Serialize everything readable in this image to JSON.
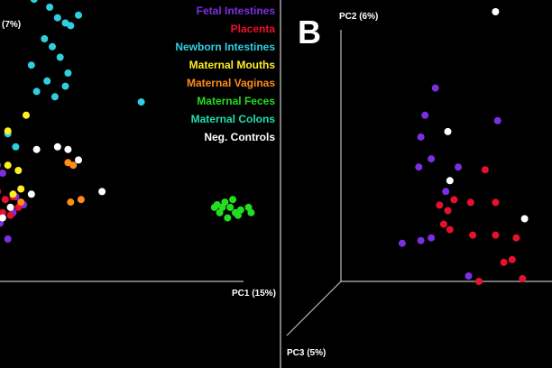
{
  "chart_data": [
    {
      "type": "scatter",
      "panel": "",
      "axes": [
        "PC1 (15%)",
        "",
        "(7%)"
      ],
      "series": [
        {
          "name": "Fetal Intestines",
          "color": "#7b2fe0",
          "points": [
            [
              -0.01,
              0.4
            ],
            [
              0.01,
              0.37
            ],
            [
              0.06,
              0.28
            ],
            [
              0.09,
              0.25
            ],
            [
              0.05,
              0.22
            ],
            [
              0.0,
              0.18
            ],
            [
              0.03,
              0.12
            ]
          ]
        },
        {
          "name": "Placenta",
          "color": "#e8112d",
          "points": [
            [
              0.02,
              0.27
            ],
            [
              0.05,
              0.28
            ],
            [
              0.07,
              0.24
            ],
            [
              0.04,
              0.21
            ],
            [
              0.01,
              0.22
            ],
            [
              -0.01,
              0.3
            ]
          ]
        },
        {
          "name": "Newborn Intestines",
          "color": "#2ed0e0",
          "points": [
            [
              0.13,
              1.03
            ],
            [
              0.19,
              1.0
            ],
            [
              0.22,
              0.96
            ],
            [
              0.25,
              0.94
            ],
            [
              0.27,
              0.93
            ],
            [
              0.3,
              0.97
            ],
            [
              0.17,
              0.88
            ],
            [
              0.2,
              0.85
            ],
            [
              0.23,
              0.81
            ],
            [
              0.26,
              0.75
            ],
            [
              0.12,
              0.78
            ],
            [
              0.18,
              0.72
            ],
            [
              0.21,
              0.66
            ],
            [
              0.25,
              0.7
            ],
            [
              0.03,
              0.52
            ],
            [
              0.06,
              0.47
            ],
            [
              0.14,
              0.68
            ],
            [
              0.54,
              0.64
            ]
          ]
        },
        {
          "name": "Maternal Mouths",
          "color": "#ffee22",
          "points": [
            [
              0.1,
              0.59
            ],
            [
              0.03,
              0.53
            ],
            [
              0.03,
              0.4
            ],
            [
              0.07,
              0.38
            ],
            [
              0.05,
              0.29
            ],
            [
              0.08,
              0.31
            ]
          ]
        },
        {
          "name": "Maternal Vaginas",
          "color": "#ff8c1a",
          "points": [
            [
              0.26,
              0.41
            ],
            [
              0.28,
              0.4
            ],
            [
              0.27,
              0.26
            ],
            [
              0.31,
              0.27
            ],
            [
              0.08,
              0.26
            ]
          ]
        },
        {
          "name": "Maternal Feces",
          "color": "#22dd22",
          "points": [
            [
              0.83,
              0.25
            ],
            [
              0.86,
              0.26
            ],
            [
              0.88,
              0.24
            ],
            [
              0.9,
              0.22
            ],
            [
              0.84,
              0.22
            ],
            [
              0.87,
              0.2
            ],
            [
              0.92,
              0.23
            ],
            [
              0.95,
              0.24
            ],
            [
              0.89,
              0.27
            ],
            [
              0.85,
              0.24
            ],
            [
              0.91,
              0.21
            ],
            [
              0.96,
              0.22
            ],
            [
              0.82,
              0.24
            ]
          ]
        },
        {
          "name": "Maternal Colons",
          "color": "#22ddaa",
          "points": []
        },
        {
          "name": "Neg. Controls",
          "color": "#ffffff",
          "points": [
            [
              0.14,
              0.46
            ],
            [
              0.22,
              0.47
            ],
            [
              0.26,
              0.46
            ],
            [
              0.3,
              0.42
            ],
            [
              0.39,
              0.3
            ],
            [
              0.12,
              0.29
            ],
            [
              0.04,
              0.24
            ],
            [
              0.01,
              0.2
            ]
          ]
        }
      ]
    },
    {
      "type": "scatter",
      "panel": "B",
      "axes": [
        "",
        "PC2 (6%)",
        "PC3 (5%)"
      ],
      "series": [
        {
          "name": "Fetal Intestines",
          "color": "#7b2fe0",
          "points": [
            [
              0.49,
              0.71
            ],
            [
              0.44,
              0.61
            ],
            [
              0.79,
              0.59
            ],
            [
              0.42,
              0.53
            ],
            [
              0.47,
              0.45
            ],
            [
              0.41,
              0.42
            ],
            [
              0.6,
              0.42
            ],
            [
              0.54,
              0.33
            ],
            [
              0.47,
              0.16
            ],
            [
              0.33,
              0.14
            ],
            [
              0.42,
              0.15
            ],
            [
              0.65,
              0.02
            ]
          ]
        },
        {
          "name": "Placenta",
          "color": "#e8112d",
          "points": [
            [
              0.73,
              0.41
            ],
            [
              0.58,
              0.3
            ],
            [
              0.66,
              0.29
            ],
            [
              0.78,
              0.29
            ],
            [
              0.55,
              0.26
            ],
            [
              0.51,
              0.28
            ],
            [
              0.56,
              0.19
            ],
            [
              0.67,
              0.17
            ],
            [
              0.78,
              0.17
            ],
            [
              0.88,
              0.16
            ],
            [
              0.53,
              0.21
            ],
            [
              0.86,
              0.08
            ],
            [
              0.91,
              0.01
            ],
            [
              0.82,
              0.07
            ],
            [
              0.7,
              0.0
            ]
          ]
        },
        {
          "name": "Neg. Controls",
          "color": "#ffffff",
          "points": [
            [
              0.78,
              0.99
            ],
            [
              0.55,
              0.55
            ],
            [
              0.56,
              0.37
            ],
            [
              0.92,
              0.23
            ]
          ]
        }
      ]
    }
  ],
  "legend": [
    {
      "label": "Fetal Intestines",
      "color": "#7b2fe0"
    },
    {
      "label": "Placenta",
      "color": "#e8112d"
    },
    {
      "label": "Newborn Intestines",
      "color": "#2ed0e0"
    },
    {
      "label": "Maternal Mouths",
      "color": "#ffee22"
    },
    {
      "label": "Maternal Vaginas",
      "color": "#ff8c1a"
    },
    {
      "label": "Maternal Feces",
      "color": "#22dd22"
    },
    {
      "label": "Maternal Colons",
      "color": "#22ddaa"
    },
    {
      "label": "Neg. Controls",
      "color": "#ffffff"
    }
  ],
  "labels": {
    "panel_a_pc1": "PC1 (15%)",
    "panel_a_pc2": "(7%)",
    "panel_b_letter": "B",
    "panel_b_pc2": "PC2 (6%)",
    "panel_b_pc3": "PC3 (5%)"
  }
}
